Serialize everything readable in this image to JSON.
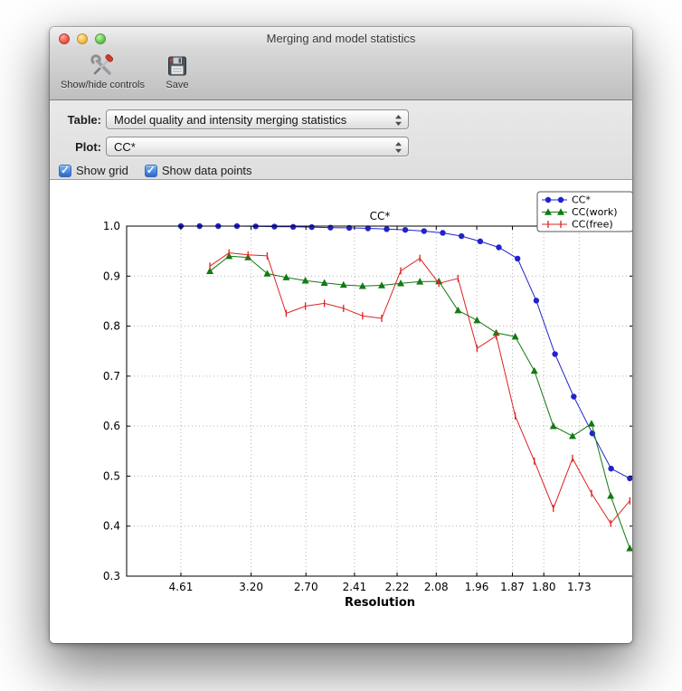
{
  "window": {
    "title": "Merging and model statistics",
    "toolbar": {
      "buttons": [
        {
          "label": "Show/hide controls",
          "icon": "tools-icon"
        },
        {
          "label": "Save",
          "icon": "save-icon"
        }
      ]
    },
    "controls": {
      "table": {
        "label": "Table:",
        "value": "Model quality and intensity merging statistics"
      },
      "plot": {
        "label": "Plot:",
        "value": "CC*"
      },
      "checkboxes": [
        {
          "label": "Show grid",
          "checked": true,
          "glyph": "✓"
        },
        {
          "label": "Show data points",
          "checked": true,
          "glyph": "✓"
        }
      ]
    }
  },
  "chart_data": {
    "type": "line",
    "title": "CC*",
    "xlabel": "Resolution",
    "ylabel": "",
    "x_units": "resolution in Angstrom; axis linear in 1/d^2",
    "xlim": [
      0.008,
      0.373
    ],
    "ylim": [
      0.3,
      1.0
    ],
    "grid": true,
    "legend_position": "upper right",
    "y_ticks": [
      {
        "value": 0.3,
        "label": "0.3"
      },
      {
        "value": 0.4,
        "label": "0.4"
      },
      {
        "value": 0.5,
        "label": "0.5"
      },
      {
        "value": 0.6,
        "label": "0.6"
      },
      {
        "value": 0.7,
        "label": "0.7"
      },
      {
        "value": 0.8,
        "label": "0.8"
      },
      {
        "value": 0.9,
        "label": "0.9"
      },
      {
        "value": 1.0,
        "label": "1.0"
      }
    ],
    "x_ticks": [
      {
        "value": 0.0471,
        "label": "4.61"
      },
      {
        "value": 0.0977,
        "label": "3.20"
      },
      {
        "value": 0.1372,
        "label": "2.70"
      },
      {
        "value": 0.1722,
        "label": "2.41"
      },
      {
        "value": 0.2029,
        "label": "2.22"
      },
      {
        "value": 0.2311,
        "label": "2.08"
      },
      {
        "value": 0.2603,
        "label": "1.96"
      },
      {
        "value": 0.286,
        "label": "1.87"
      },
      {
        "value": 0.3086,
        "label": "1.80"
      },
      {
        "value": 0.3341,
        "label": "1.73"
      }
    ],
    "series": [
      {
        "name": "CC*",
        "color": "#2222cc",
        "marker": "circle",
        "x": [
          0.0471,
          0.0606,
          0.074,
          0.0875,
          0.101,
          0.1145,
          0.128,
          0.1414,
          0.1549,
          0.1684,
          0.1819,
          0.1954,
          0.2088,
          0.2223,
          0.2358,
          0.2493,
          0.2628,
          0.2762,
          0.2897,
          0.3032,
          0.3167,
          0.3302,
          0.3436,
          0.3571,
          0.3706
        ],
        "y": [
          1.0,
          1.0,
          1.0,
          1.0,
          0.9995,
          0.999,
          0.9985,
          0.998,
          0.997,
          0.9965,
          0.9955,
          0.994,
          0.9925,
          0.99,
          0.9865,
          0.98,
          0.9695,
          0.9575,
          0.935,
          0.851,
          0.744,
          0.659,
          0.5855,
          0.515,
          0.4955
        ]
      },
      {
        "name": "CC(work)",
        "color": "#127a12",
        "marker": "triangle-up",
        "x": [
          0.068,
          0.0818,
          0.0955,
          0.1093,
          0.123,
          0.1368,
          0.1505,
          0.1643,
          0.178,
          0.1918,
          0.2055,
          0.2193,
          0.233,
          0.2468,
          0.2605,
          0.2743,
          0.288,
          0.3018,
          0.3155,
          0.3293,
          0.343,
          0.3568,
          0.3706
        ],
        "y": [
          0.91,
          0.94,
          0.9375,
          0.905,
          0.8975,
          0.891,
          0.8865,
          0.8825,
          0.88,
          0.8815,
          0.8855,
          0.889,
          0.8895,
          0.8315,
          0.8115,
          0.7865,
          0.779,
          0.7105,
          0.6,
          0.58,
          0.605,
          0.4605,
          0.3555
        ]
      },
      {
        "name": "CC(free)",
        "color": "#dd2222",
        "marker": "vline",
        "x": [
          0.068,
          0.0818,
          0.0955,
          0.1093,
          0.123,
          0.1368,
          0.1505,
          0.1643,
          0.178,
          0.1918,
          0.2055,
          0.2193,
          0.233,
          0.2468,
          0.2605,
          0.2743,
          0.288,
          0.3018,
          0.3155,
          0.3293,
          0.343,
          0.3568,
          0.3706
        ],
        "y": [
          0.92,
          0.9465,
          0.9425,
          0.9405,
          0.8255,
          0.84,
          0.8455,
          0.8355,
          0.8205,
          0.8155,
          0.9105,
          0.9355,
          0.8855,
          0.8955,
          0.7555,
          0.7805,
          0.6205,
          0.53,
          0.4355,
          0.5355,
          0.4655,
          0.4055,
          0.4505
        ]
      }
    ]
  }
}
